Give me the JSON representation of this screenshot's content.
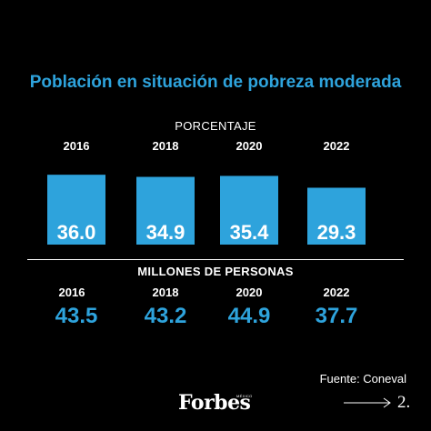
{
  "title": "Población en situación de pobreza moderada",
  "colors": {
    "accent": "#2ea3dc",
    "background": "#000000",
    "text": "#ffffff"
  },
  "chart_data": [
    {
      "type": "bar",
      "subtitle": "PORCENTAJE",
      "categories": [
        "2016",
        "2018",
        "2020",
        "2022"
      ],
      "values": [
        36.0,
        34.9,
        35.4,
        29.3
      ],
      "value_labels": [
        "36.0",
        "34.9",
        "35.4",
        "29.3"
      ]
    },
    {
      "type": "table",
      "subtitle": "MILLONES DE PERSONAS",
      "categories": [
        "2016",
        "2018",
        "2020",
        "2022"
      ],
      "values": [
        43.5,
        43.2,
        44.9,
        37.7
      ],
      "value_labels": [
        "43.5",
        "43.2",
        "44.9",
        "37.7"
      ]
    }
  ],
  "source": "Fuente: Coneval",
  "brand": {
    "name": "Forbes",
    "edition": "MÉXICO"
  },
  "page_number": "2.",
  "icons": [
    "arrow-right-icon"
  ]
}
